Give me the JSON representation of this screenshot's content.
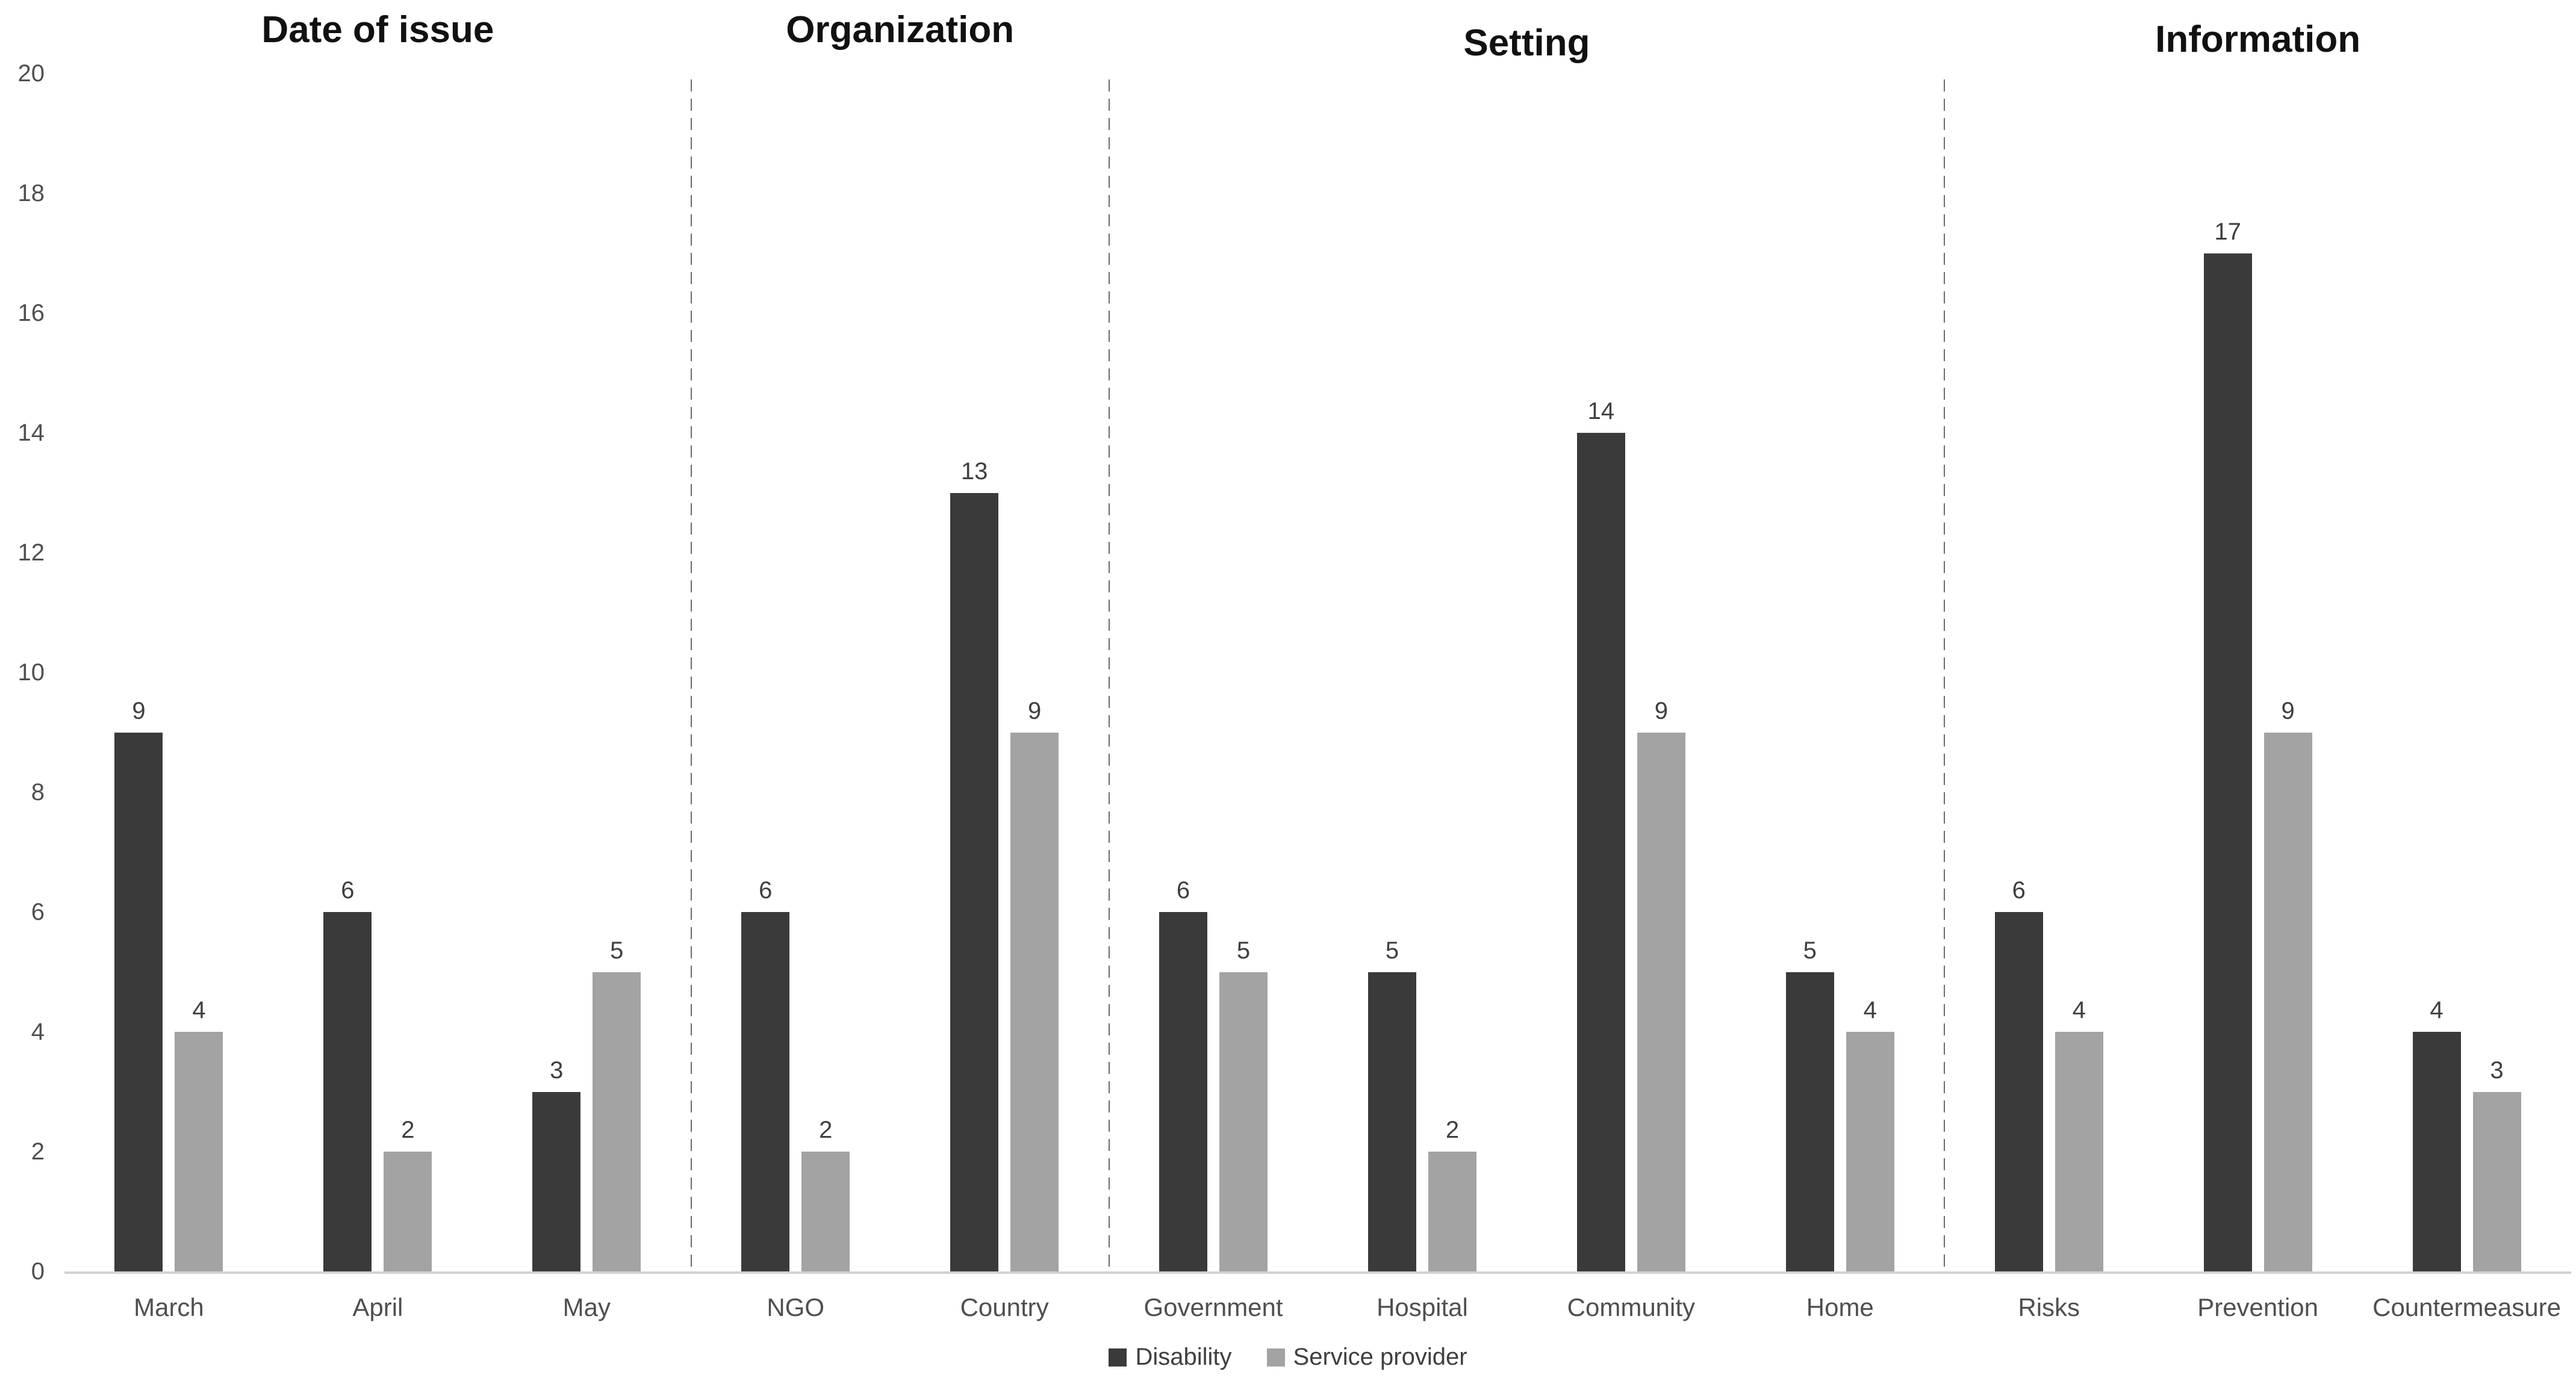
{
  "page": {
    "background": "#ffffff"
  },
  "chart_data": {
    "type": "bar",
    "title": "",
    "xlabel": "",
    "ylabel": "",
    "ylim": [
      0,
      20
    ],
    "ytick_step": 2,
    "grid": false,
    "legend_position": "bottom",
    "value_labels": true,
    "sections": [
      {
        "title": "Date of issue",
        "categories": [
          "March",
          "April",
          "May"
        ]
      },
      {
        "title": "Organization",
        "categories": [
          "NGO",
          "Country"
        ]
      },
      {
        "title": "Setting",
        "categories": [
          "Government",
          "Hospital",
          "Community",
          "Home"
        ]
      },
      {
        "title": "Information",
        "categories": [
          "Risks",
          "Prevention",
          "Countermeasure"
        ]
      }
    ],
    "categories": [
      "March",
      "April",
      "May",
      "NGO",
      "Country",
      "Government",
      "Hospital",
      "Community",
      "Home",
      "Risks",
      "Prevention",
      "Countermeasure"
    ],
    "series": [
      {
        "name": "Disability",
        "color": "#3a3a3a",
        "values": [
          9,
          6,
          3,
          6,
          13,
          6,
          5,
          14,
          5,
          6,
          17,
          4
        ]
      },
      {
        "name": "Service provider",
        "color": "#a3a3a3",
        "values": [
          4,
          2,
          5,
          2,
          9,
          5,
          2,
          9,
          4,
          4,
          9,
          3
        ]
      }
    ]
  },
  "colors": {
    "background": "#ffffff",
    "axis_line": "#d2d2d2",
    "divider": "#6b6b6b",
    "tick_label": "#4f4f4f",
    "category_label": "#4f4f4f",
    "value_label": "#3f3f3f",
    "section_title": "#111111",
    "legend_label": "#3f3f3f"
  }
}
